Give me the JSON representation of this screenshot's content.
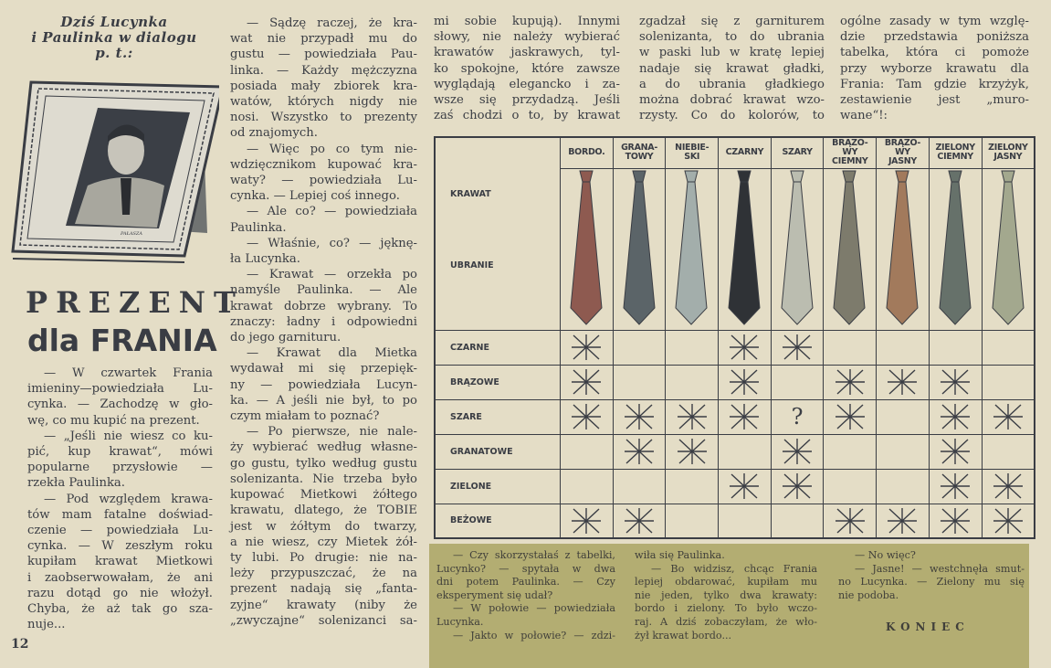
{
  "header": {
    "kicker_lines": [
      "Dziś Lucynka",
      "i Paulinka w dialogu",
      "p. t.:"
    ],
    "title_line1": "PREZENT",
    "title_line2": "dla FRANIA",
    "illustration_signature": "PAŁASZA",
    "page_number": "12"
  },
  "columns": [
    {
      "paragraphs": [
        {
          "lines": [
            "— W czwartek Frania",
            "imieniny—powiedziała Lu-",
            "cynka. — Zachodzę w gło-",
            "wę, co mu kupić na prezent."
          ]
        },
        {
          "lines": [
            "— „Jeśli nie wiesz co ku-",
            "pić, kup krawat“, mówi",
            "popularne przysłowie —",
            "rzekła Paulinka."
          ]
        },
        {
          "lines": [
            "— Pod względem krawa-",
            "tów mam fatalne doświad-",
            "czenie — powiedziała Lu-",
            "cynka. — W zeszłym roku",
            "kupiłam krawat Mietkowi",
            "i zaobserwowałam, że ani",
            "razu dotąd go nie włożył.",
            "Chyba, że aż tak go sza-",
            "nuje..."
          ]
        }
      ]
    },
    {
      "paragraphs": [
        {
          "lines": [
            "— Sądzę raczej, że kra-",
            "wat nie przypadł mu do",
            "gustu — powiedziała Pau-",
            "linka. — Każdy mężczyzna",
            "posiada mały zbiorek kra-",
            "watów, których nigdy nie",
            "nosi. Wszystko to prezenty",
            "od znajomych."
          ]
        },
        {
          "lines": [
            "— Więc po co tym nie-",
            "wdzięcznikom kupować kra-",
            "waty? — powiedziała Lu-",
            "cynka. — Lepiej coś innego."
          ]
        },
        {
          "lines": [
            "— Ale co? — powiedziała",
            "Paulinka."
          ]
        },
        {
          "lines": [
            "— Właśnie, co? — jęknę-",
            "ła Lucynka."
          ]
        },
        {
          "lines": [
            "— Krawat — orzekła po",
            "namyśle Paulinka. — Ale",
            "krawat dobrze wybrany. To",
            "znaczy: ładny i odpowiedni",
            "do jego garnituru."
          ]
        },
        {
          "lines": [
            "— Krawat dla Mietka",
            "wydawał mi się przepięk-",
            "ny — powiedziała Lucyn-",
            "ka. — A jeśli nie był, to po",
            "czym miałam to poznać?"
          ]
        },
        {
          "continues": true,
          "lines": [
            "— Po pierwsze, nie nale-",
            "ży wybierać według własne-",
            "go gustu, tylko według gustu",
            "solenizanta. Nie trzeba było",
            "kupować Mietkowi żółtego",
            "krawatu, dlatego, że TOBIE",
            "jest w żółtym do twarzy,",
            "a nie wiesz, czy Mietek żół-",
            "ty lubi. Po drugie: nie na-",
            "leży przypuszczać, że na",
            "prezent nadają się „fanta-",
            "zyjne“ krawaty (niby że",
            "„zwyczajne“ solenizanci sa-"
          ]
        }
      ]
    },
    {
      "paragraphs": [
        {
          "continued": true,
          "continues": true,
          "lines": [
            "mi sobie kupują). Innymi",
            "słowy, nie należy wybierać",
            "krawatów jaskrawych, tyl-",
            "ko spokojne, które zawsze",
            "wyglądają elegancko i za-",
            "wsze się przydadzą. Jeśli",
            "zaś chodzi o to, by krawat"
          ]
        }
      ]
    },
    {
      "paragraphs": [
        {
          "continued": true,
          "continues": true,
          "lines": [
            "zgadzał się z garniturem",
            "solenizanta, to do ubrania",
            "w paski lub w kratę lepiej",
            "nadaje się krawat gładki,",
            "a do ubrania gładkiego",
            "można dobrać krawat wzo-",
            "rzysty. Co do kolorów, to"
          ]
        }
      ]
    },
    {
      "paragraphs": [
        {
          "continued": true,
          "lines": [
            "ogólne zasady w tym wzglę-",
            "dzie przedstawia poniższa",
            "tabelka, która ci pomoże",
            "przy wyborze krawatu dla",
            "Frania: Tam gdzie krzyżyk,",
            "zestawienie jest „muro-",
            "wane“!:"
          ]
        }
      ]
    }
  ],
  "table": {
    "row_header_tie": "KRAWAT",
    "row_header_suit": "UBRANIE",
    "ties": [
      {
        "label_lines": [
          "BORDO."
        ],
        "color": "#8e5a50"
      },
      {
        "label_lines": [
          "GRANA-",
          "TOWY"
        ],
        "color": "#5b6468"
      },
      {
        "label_lines": [
          "NIEBIE-",
          "SKI"
        ],
        "color": "#a3aeab"
      },
      {
        "label_lines": [
          "CZARNY"
        ],
        "color": "#2f3236"
      },
      {
        "label_lines": [
          "SZARY"
        ],
        "color": "#bbbdb0"
      },
      {
        "label_lines": [
          "BRĄZO-",
          "WY",
          "CIEMNY"
        ],
        "color": "#7d7b6c"
      },
      {
        "label_lines": [
          "BRĄZO-",
          "WY",
          "JASNY"
        ],
        "color": "#a27a5c"
      },
      {
        "label_lines": [
          "ZIELONY",
          "CIEMNY"
        ],
        "color": "#66716a"
      },
      {
        "label_lines": [
          "ZIELONY",
          "JASNY"
        ],
        "color": "#a3a88e"
      }
    ],
    "suits": [
      {
        "label": "CZARNE",
        "marks": [
          "x",
          "",
          "",
          "x",
          "x",
          "",
          "",
          "",
          ""
        ]
      },
      {
        "label": "BRĄZOWE",
        "marks": [
          "x",
          "",
          "",
          "x",
          "",
          "x",
          "x",
          "x",
          ""
        ]
      },
      {
        "label": "SZARE",
        "marks": [
          "x",
          "x",
          "x",
          "x",
          "?",
          "x",
          "",
          "x",
          "x"
        ]
      },
      {
        "label": "GRANATOWE",
        "marks": [
          "",
          "x",
          "x",
          "",
          "x",
          "",
          "",
          "x",
          ""
        ]
      },
      {
        "label": "ZIELONE",
        "marks": [
          "",
          "",
          "",
          "x",
          "x",
          "",
          "",
          "x",
          "x"
        ]
      },
      {
        "label": "BEŻOWE",
        "marks": [
          "x",
          "x",
          "",
          "",
          "",
          "x",
          "x",
          "x",
          "x"
        ]
      }
    ]
  },
  "footer_box": {
    "background": "#b3ad72",
    "columns": [
      {
        "paragraphs": [
          {
            "lines": [
              "— Czy skorzystałaś z tabelki,",
              "Lucynko? — spytała w dwa",
              "dni potem Paulinka. — Czy",
              "eksperyment się udał?"
            ]
          },
          {
            "lines": [
              "— W połowie — powiedziała",
              "Lucynka."
            ]
          },
          {
            "continues": true,
            "lines": [
              "— Jakto w połowie? — zdzi-"
            ]
          }
        ]
      },
      {
        "paragraphs": [
          {
            "continued": true,
            "lines": [
              "wiła się Paulinka."
            ]
          },
          {
            "lines": [
              "— Bo widzisz, chcąc Frania",
              "lepiej obdarować, kupiłam mu",
              "nie jeden, tylko dwa krawaty:",
              "bordo i zielony. To było wczo-",
              "raj. A dziś zobaczyłam, że wło-",
              "żył krawat bordo..."
            ]
          }
        ]
      },
      {
        "paragraphs": [
          {
            "lines": [
              "— No więc?"
            ]
          },
          {
            "lines": [
              "— Jasne! — westchnęła smut-",
              "no Lucynka. — Zielony mu się",
              "nie podoba."
            ]
          }
        ]
      }
    ],
    "end_mark": "KONIEC"
  }
}
